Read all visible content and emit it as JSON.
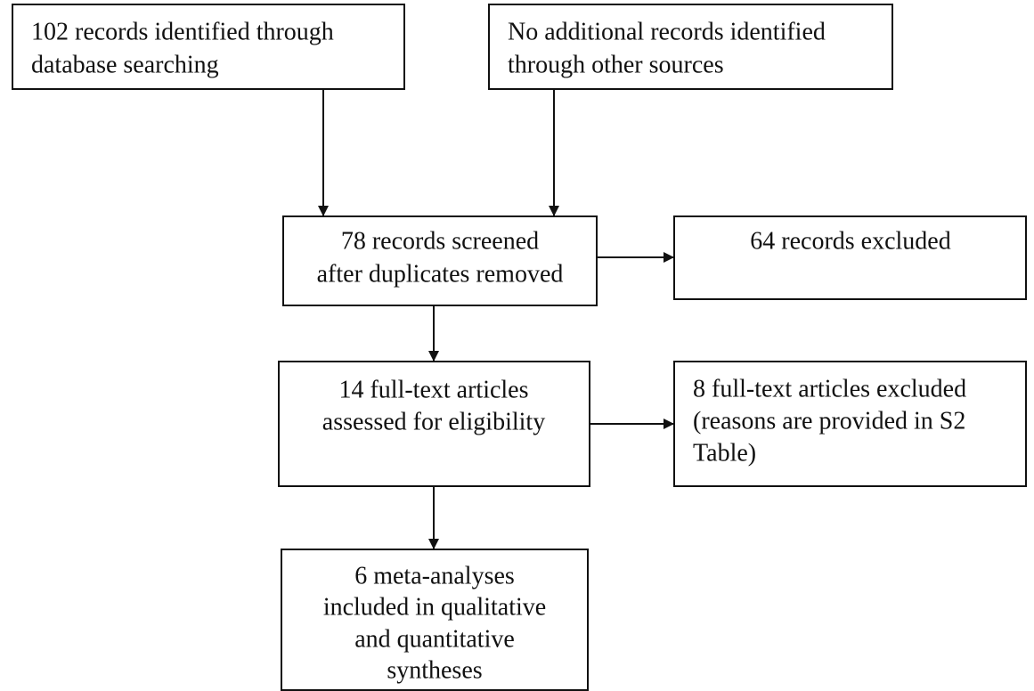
{
  "nodes": [
    {
      "lines": [
        "102 records identified through",
        "database searching"
      ]
    },
    {
      "lines": [
        "No additional records identified",
        "through other sources"
      ]
    },
    {
      "lines": [
        "78 records screened",
        "after duplicates removed"
      ]
    },
    {
      "lines": [
        "64 records excluded"
      ]
    },
    {
      "lines": [
        "14 full-text articles",
        "assessed for eligibility"
      ]
    },
    {
      "lines": [
        "8 full-text articles excluded",
        "(reasons are provided in S2",
        "Table)"
      ]
    },
    {
      "lines": [
        "6 meta-analyses",
        "included in qualitative",
        "and quantitative",
        "syntheses"
      ]
    }
  ]
}
